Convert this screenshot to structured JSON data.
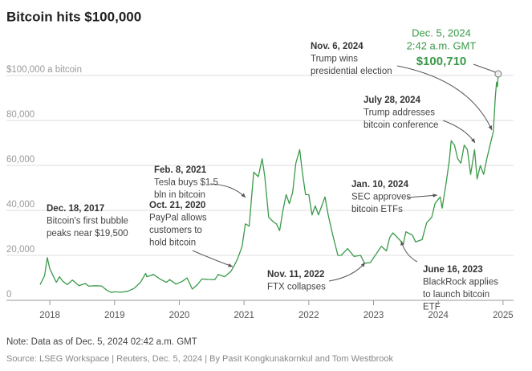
{
  "chart_data": {
    "type": "line",
    "title": "Bitcoin hits $100,000",
    "color": "#3a9a4a",
    "grid": true,
    "xlim": [
      2017.85,
      2025.2
    ],
    "xticks": [
      2018,
      2019,
      2020,
      2021,
      2022,
      2023,
      2024,
      2025
    ],
    "ylim": [
      0,
      100000
    ],
    "yticks": [
      0,
      {
        "value": 20000,
        "label": "20,000"
      },
      {
        "value": 40000,
        "label": "40,000"
      },
      {
        "value": 60000,
        "label": "60,000"
      },
      {
        "value": 80000,
        "label": "80,000"
      },
      {
        "value": 100000,
        "label": "$100,000 a bitcoin"
      }
    ],
    "x": [
      2017.85,
      2017.92,
      2017.96,
      2018.0,
      2018.05,
      2018.1,
      2018.15,
      2018.2,
      2018.27,
      2018.35,
      2018.45,
      2018.55,
      2018.6,
      2018.7,
      2018.8,
      2018.88,
      2018.95,
      2019.0,
      2019.1,
      2019.2,
      2019.3,
      2019.4,
      2019.48,
      2019.5,
      2019.6,
      2019.7,
      2019.8,
      2019.85,
      2019.95,
      2020.05,
      2020.12,
      2020.2,
      2020.28,
      2020.35,
      2020.45,
      2020.55,
      2020.6,
      2020.7,
      2020.8,
      2020.85,
      2020.9,
      2020.97,
      2021.02,
      2021.08,
      2021.12,
      2021.15,
      2021.22,
      2021.28,
      2021.32,
      2021.38,
      2021.45,
      2021.5,
      2021.55,
      2021.6,
      2021.65,
      2021.7,
      2021.75,
      2021.8,
      2021.86,
      2021.9,
      2021.95,
      2022.0,
      2022.05,
      2022.1,
      2022.15,
      2022.25,
      2022.3,
      2022.37,
      2022.45,
      2022.5,
      2022.6,
      2022.7,
      2022.8,
      2022.86,
      2022.95,
      2023.05,
      2023.12,
      2023.2,
      2023.25,
      2023.3,
      2023.4,
      2023.46,
      2023.5,
      2023.6,
      2023.65,
      2023.75,
      2023.82,
      2023.9,
      2023.95,
      2024.03,
      2024.06,
      2024.12,
      2024.17,
      2024.2,
      2024.25,
      2024.3,
      2024.35,
      2024.4,
      2024.45,
      2024.5,
      2024.56,
      2024.6,
      2024.65,
      2024.7,
      2024.75,
      2024.8,
      2024.85,
      2024.88,
      2024.9,
      2024.915,
      2024.926
    ],
    "values": [
      7000,
      11000,
      19000,
      14000,
      11000,
      8000,
      10500,
      8500,
      7000,
      9000,
      6500,
      7500,
      6300,
      6500,
      6400,
      4500,
      3500,
      3800,
      3600,
      4000,
      5300,
      8000,
      12000,
      10500,
      11500,
      9500,
      8000,
      9200,
      7200,
      8500,
      10000,
      5000,
      7000,
      9500,
      9300,
      9200,
      11500,
      10500,
      13000,
      15500,
      18500,
      24000,
      34000,
      33000,
      47000,
      57000,
      55000,
      63000,
      55000,
      37000,
      35000,
      34000,
      31000,
      40000,
      47000,
      43000,
      48000,
      61000,
      67000,
      57000,
      47000,
      47000,
      38000,
      42000,
      38000,
      46000,
      38000,
      29000,
      20000,
      20000,
      23000,
      19500,
      20000,
      16500,
      16800,
      21000,
      24000,
      22000,
      28000,
      30000,
      27000,
      25000,
      30500,
      29000,
      26000,
      27000,
      34500,
      37000,
      43000,
      46000,
      41000,
      52000,
      62000,
      71000,
      69000,
      63000,
      61000,
      69000,
      67000,
      56000,
      67000,
      54000,
      60000,
      56000,
      63000,
      69000,
      75000,
      90000,
      97000,
      95000,
      100710
    ],
    "highlight": {
      "date": "Dec. 5, 2024",
      "time": "2:42 a.m. GMT",
      "x": 2024.926,
      "value": 100710,
      "value_label": "$100,710"
    },
    "annotations": [
      {
        "title": "Dec. 18, 2017",
        "lines": [
          "Bitcoin's first bubble",
          "peaks near $19,500"
        ]
      },
      {
        "title": "Feb. 8, 2021",
        "lines": [
          "Tesla buys $1.5",
          "bln in bitcoin"
        ]
      },
      {
        "title": "Oct. 21, 2020",
        "lines": [
          "PayPal allows",
          "customers to",
          "hold bitcoin"
        ]
      },
      {
        "title": "Nov. 11, 2022",
        "lines": [
          "FTX collapses"
        ]
      },
      {
        "title": "June 16, 2023",
        "lines": [
          "BlackRock applies",
          "to launch bitcoin",
          "ETF"
        ]
      },
      {
        "title": "Jan. 10, 2024",
        "lines": [
          "SEC approves",
          "bitcoin ETFs"
        ]
      },
      {
        "title": "July 28, 2024",
        "lines": [
          "Trump addresses",
          "bitcoin conference"
        ]
      },
      {
        "title": "Nov. 6, 2024",
        "lines": [
          "Trump wins",
          "presidential election"
        ]
      }
    ],
    "note": "Note: Data as of Dec. 5, 2024 02:42 a.m. GMT",
    "source": "Source: LSEG Workspace | Reuters, Dec. 5, 2024 | By Pasit Kongkunakornkul and Tom Westbrook"
  }
}
